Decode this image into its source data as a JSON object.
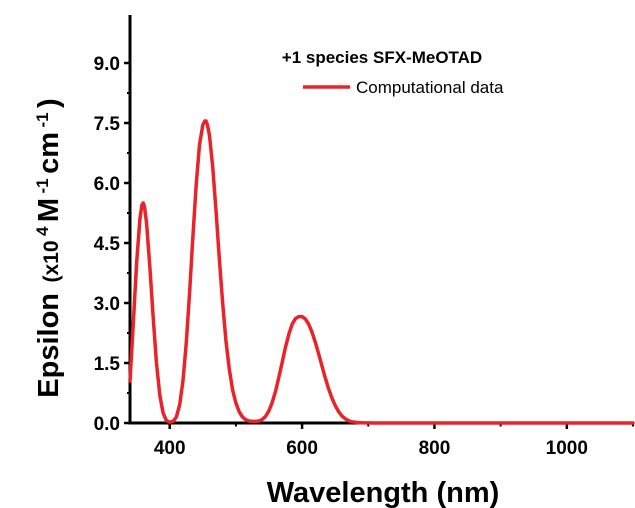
{
  "chart_data": {
    "type": "line",
    "annotation": "+1 species SFX-MeOTAD",
    "xlabel": "Wavelength (nm)",
    "ylabel": {
      "main": "Epsilon",
      "unit_prefix": "(x10",
      "exp1": "4",
      "unit_mid": " M",
      "exp2": "-1",
      "unit_mid2": " cm",
      "exp3": "-1",
      "unit_suffix": ")"
    },
    "xlim": [
      340,
      1100
    ],
    "ylim": [
      0,
      10.2
    ],
    "xticks": [
      400,
      600,
      800,
      1000
    ],
    "yticks": [
      0.0,
      1.5,
      3.0,
      4.5,
      6.0,
      7.5,
      9.0
    ],
    "ytick_labels": [
      "0.0",
      "1.5",
      "3.0",
      "4.5",
      "6.0",
      "7.5",
      "9.0"
    ],
    "legend": "top-right",
    "series": [
      {
        "name": "Computational data",
        "color": "#e8232a",
        "x": [
          340,
          345,
          350,
          355,
          358,
          360,
          362,
          365,
          370,
          375,
          380,
          385,
          390,
          395,
          400,
          405,
          410,
          415,
          420,
          425,
          430,
          435,
          440,
          445,
          450,
          453,
          455,
          457,
          460,
          465,
          470,
          475,
          480,
          485,
          490,
          495,
          500,
          505,
          510,
          515,
          520,
          525,
          530,
          535,
          540,
          545,
          550,
          555,
          560,
          565,
          570,
          575,
          580,
          585,
          590,
          595,
          600,
          605,
          610,
          615,
          620,
          625,
          630,
          635,
          640,
          645,
          650,
          655,
          660,
          665,
          670,
          675,
          680,
          685,
          690,
          695,
          700,
          710,
          720,
          740,
          760,
          800,
          850,
          900,
          950,
          1000,
          1050,
          1100
        ],
        "y": [
          1.05,
          2.5,
          4.0,
          5.1,
          5.45,
          5.5,
          5.4,
          5.0,
          3.9,
          2.65,
          1.5,
          0.7,
          0.25,
          0.06,
          0.02,
          0.04,
          0.15,
          0.45,
          1.05,
          2.0,
          3.25,
          4.65,
          5.95,
          6.95,
          7.45,
          7.55,
          7.55,
          7.45,
          7.2,
          6.4,
          5.3,
          4.1,
          3.0,
          2.05,
          1.35,
          0.83,
          0.5,
          0.28,
          0.15,
          0.08,
          0.05,
          0.04,
          0.04,
          0.05,
          0.09,
          0.17,
          0.31,
          0.52,
          0.8,
          1.15,
          1.52,
          1.9,
          2.22,
          2.47,
          2.61,
          2.66,
          2.66,
          2.6,
          2.47,
          2.27,
          2.02,
          1.73,
          1.43,
          1.13,
          0.86,
          0.63,
          0.44,
          0.29,
          0.18,
          0.11,
          0.06,
          0.03,
          0.02,
          0.01,
          0.005,
          0.003,
          0.002,
          0.0,
          0.0,
          0.0,
          0.0,
          0.0,
          0.0,
          0.0,
          0.0,
          0.0,
          0.0,
          0.0
        ]
      }
    ]
  }
}
